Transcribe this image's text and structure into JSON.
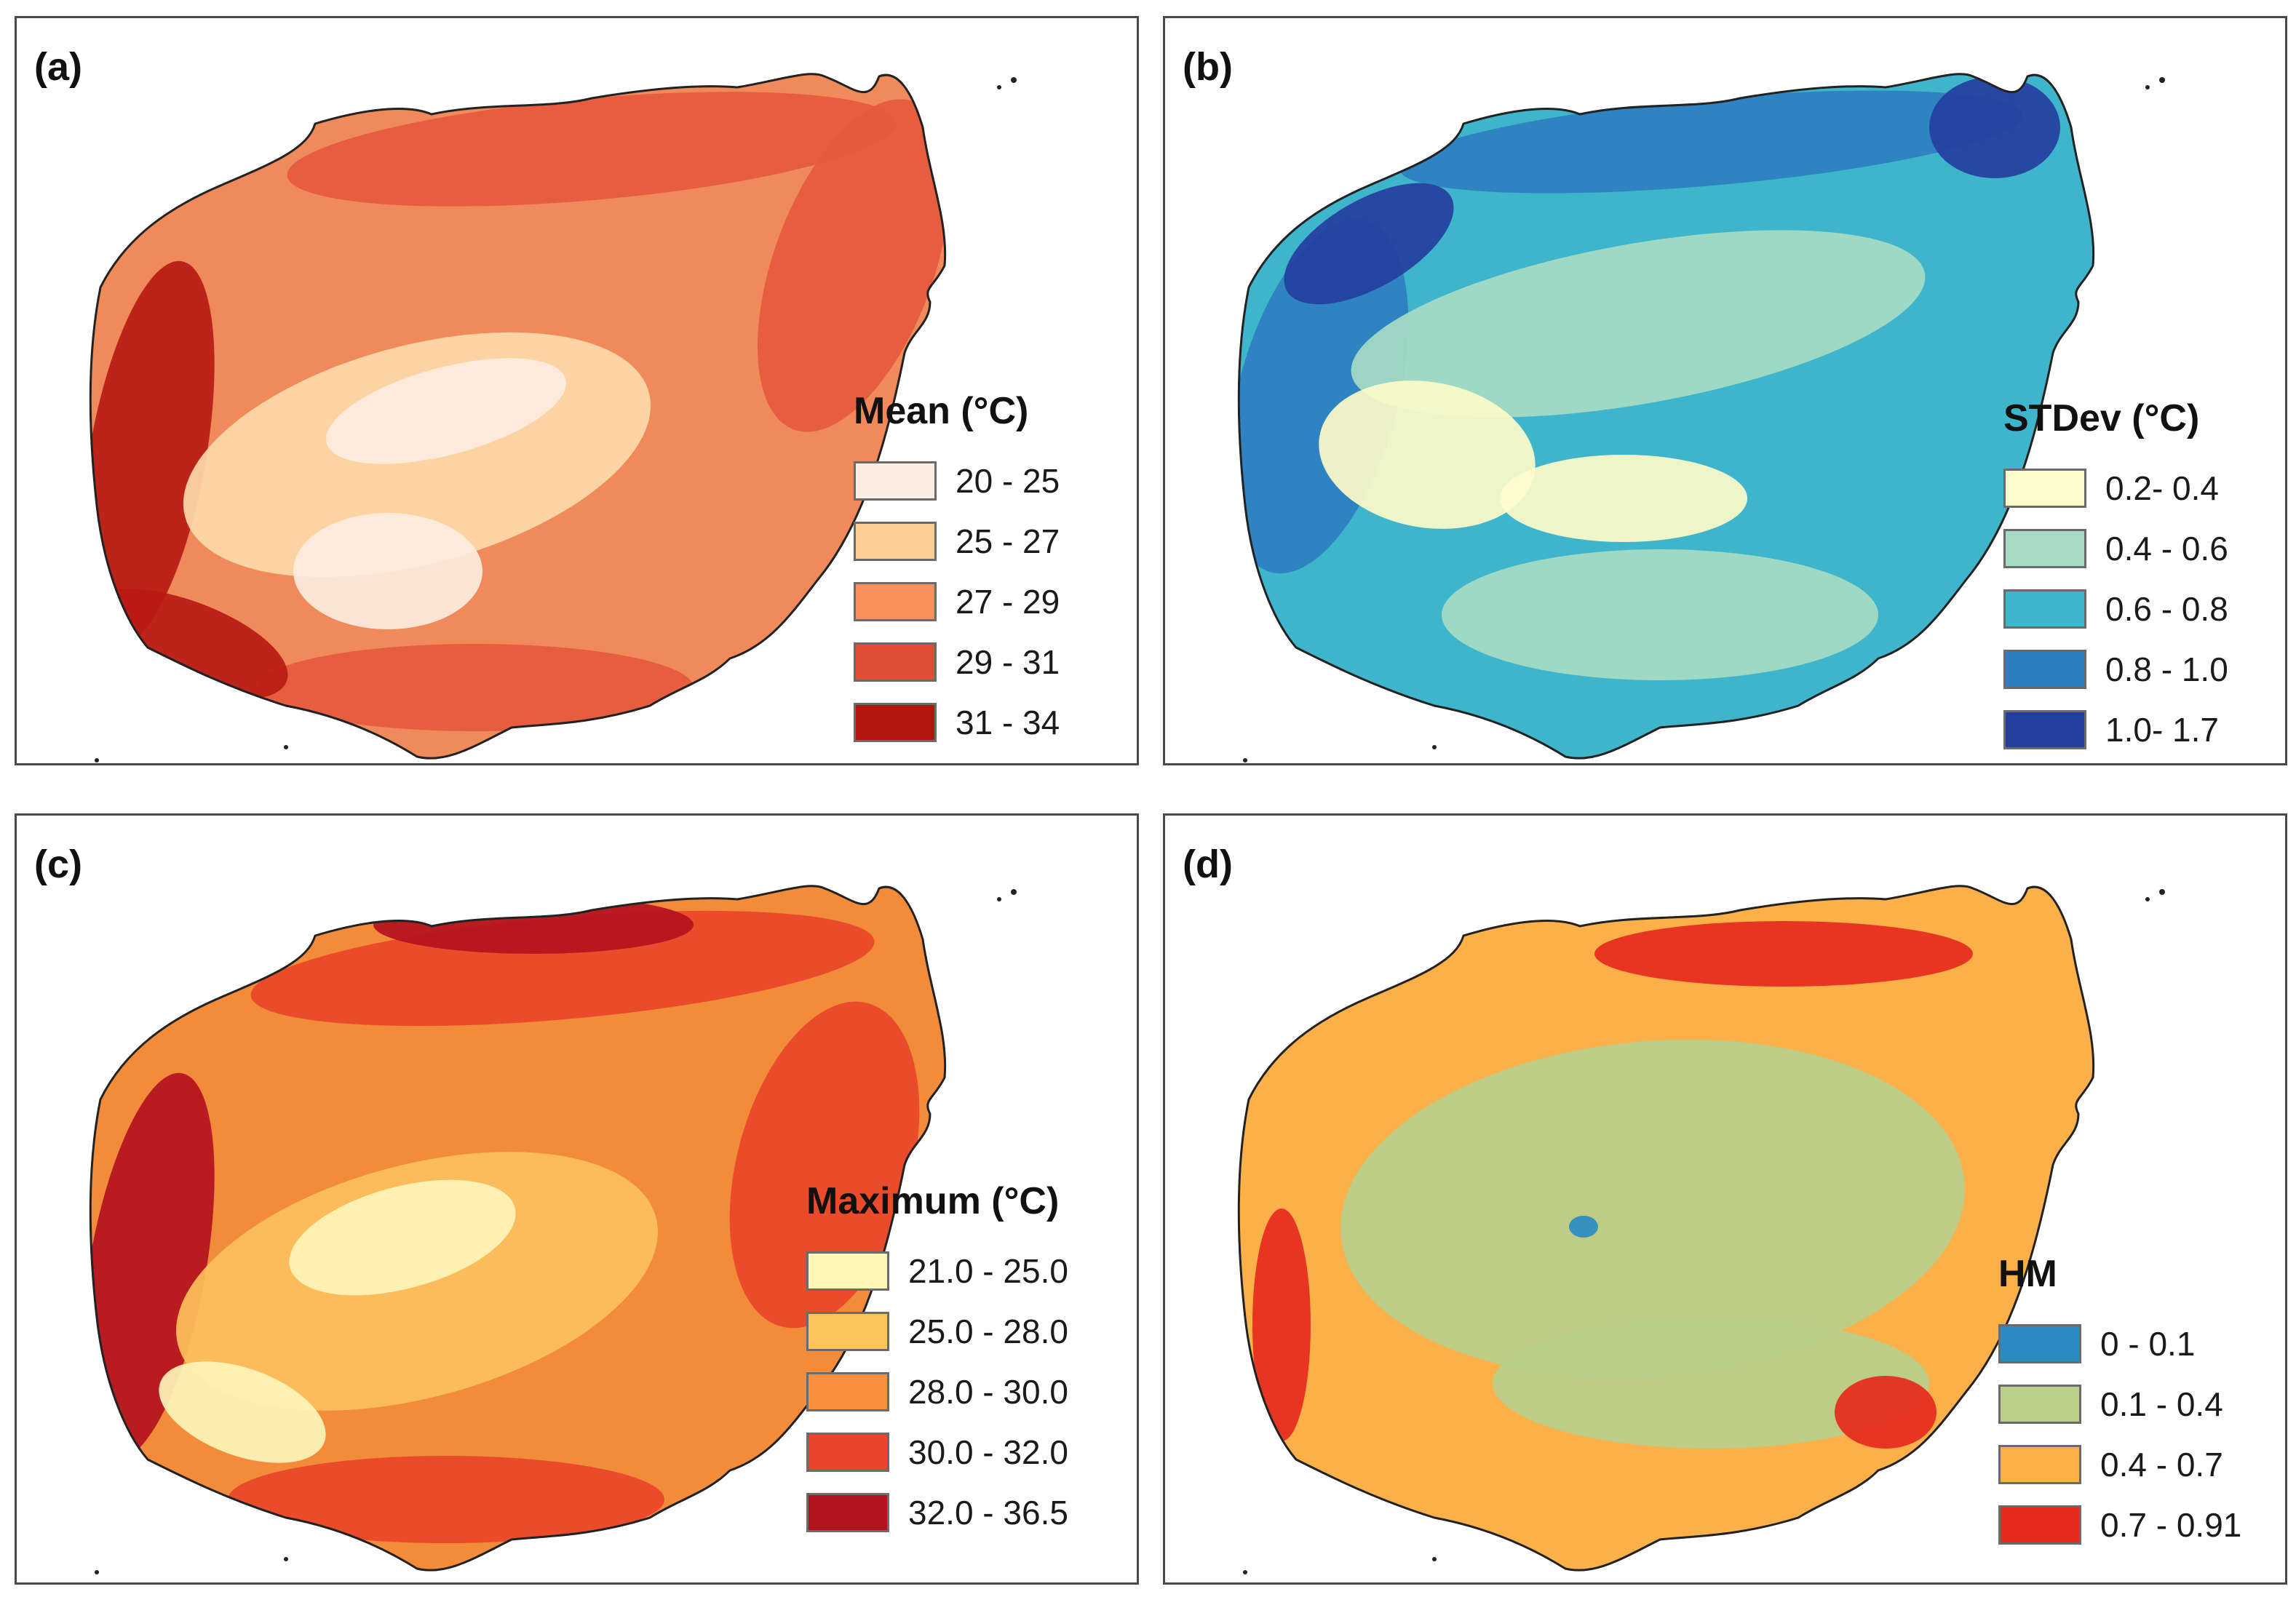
{
  "panels": [
    {
      "label": "(a)",
      "legend_title": "Mean (°C)",
      "base_color": "#f08a5b",
      "blobs": [
        {
          "color": "#e55a3d",
          "note": "north coast band"
        },
        {
          "color": "#e55a3d",
          "note": "east band"
        },
        {
          "color": "#e55a3d",
          "note": "south band"
        },
        {
          "color": "#b81b14",
          "note": "west coast"
        },
        {
          "color": "#b81b14",
          "note": "southwest corner"
        },
        {
          "color": "#fdd9a8",
          "note": "central highlands"
        },
        {
          "color": "#fdecdf",
          "note": "central peaks"
        },
        {
          "color": "#fdecdf",
          "note": "south-central peaks"
        }
      ],
      "legend": [
        {
          "range": "20 - 25",
          "color": "#fdece0"
        },
        {
          "range": "25 - 27",
          "color": "#fdcf95"
        },
        {
          "range": "27 - 29",
          "color": "#f98d5c"
        },
        {
          "range": "29 - 31",
          "color": "#e04e36"
        },
        {
          "range": "31 - 34",
          "color": "#b1160f"
        }
      ]
    },
    {
      "label": "(b)",
      "legend_title": "STDev (°C)",
      "base_color": "#3fb5cc",
      "blobs": [
        {
          "color": "#2c7fbf",
          "note": "north coast"
        },
        {
          "color": "#2c7fbf",
          "note": "west coast"
        },
        {
          "color": "#243f9e",
          "note": "northwest"
        },
        {
          "color": "#243f9e",
          "note": "northeast"
        },
        {
          "color": "#a6dcc4",
          "note": "central band"
        },
        {
          "color": "#a6dcc4",
          "note": "south"
        },
        {
          "color": "#fdfbc9",
          "note": "southwest interior"
        },
        {
          "color": "#fdfbc9",
          "note": "south interior"
        }
      ],
      "legend": [
        {
          "range": "0.2- 0.4",
          "color": "#fdfbc9"
        },
        {
          "range": "0.4 - 0.6",
          "color": "#a6dcc4"
        },
        {
          "range": "0.6 - 0.8",
          "color": "#3fb5cc"
        },
        {
          "range": "0.8 - 1.0",
          "color": "#2c7fbf"
        },
        {
          "range": "1.0- 1.7",
          "color": "#243f9e"
        }
      ]
    },
    {
      "label": "(c)",
      "legend_title": "Maximum (°C)",
      "base_color": "#f28b3a",
      "blobs": [
        {
          "color": "#e8452a",
          "note": "north band"
        },
        {
          "color": "#e8452a",
          "note": "east"
        },
        {
          "color": "#e8452a",
          "note": "south"
        },
        {
          "color": "#b3121f",
          "note": "west coast"
        },
        {
          "color": "#b3121f",
          "note": "north coast"
        },
        {
          "color": "#fdc05e",
          "note": "central"
        },
        {
          "color": "#fdf4b8",
          "note": "central peaks"
        },
        {
          "color": "#fdf4b8",
          "note": "southwest peaks"
        }
      ],
      "legend": [
        {
          "range": "21.0 - 25.0",
          "color": "#fdf6b5"
        },
        {
          "range": "25.0 - 28.0",
          "color": "#fdc45e"
        },
        {
          "range": "28.0 - 30.0",
          "color": "#f8903c"
        },
        {
          "range": "30.0 - 32.0",
          "color": "#e8452a"
        },
        {
          "range": "32.0 - 36.5",
          "color": "#b3121f"
        }
      ]
    },
    {
      "label": "(d)",
      "legend_title": "HM",
      "base_color": "#fbb04a",
      "blobs": [
        {
          "color": "#b9cf8a",
          "note": "interior"
        },
        {
          "color": "#b9cf8a",
          "note": "south interior"
        },
        {
          "color": "#e62a1e",
          "note": "north coast patch"
        },
        {
          "color": "#e62a1e",
          "note": "southeast patch"
        },
        {
          "color": "#e62a1e",
          "note": "west patch"
        },
        {
          "color": "#2b8cc4",
          "note": "reservoir"
        }
      ],
      "legend": [
        {
          "range": "0 - 0.1",
          "color": "#2b8cc4"
        },
        {
          "range": "0.1 - 0.4",
          "color": "#b9cf8a"
        },
        {
          "range": "0.4 - 0.7",
          "color": "#fbb04a"
        },
        {
          "range": "0.7 - 0.91",
          "color": "#e62a1e"
        }
      ]
    }
  ]
}
